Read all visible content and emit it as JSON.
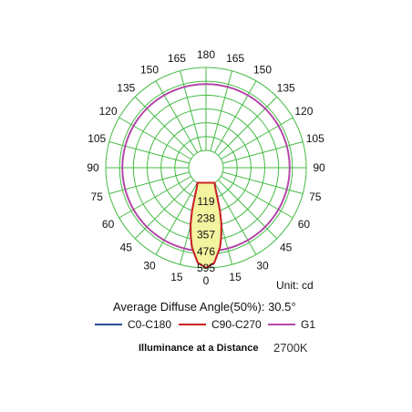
{
  "chart_data": {
    "type": "polar",
    "angle_labels": [
      "180",
      "165",
      "150",
      "135",
      "120",
      "105",
      "90",
      "75",
      "60",
      "45",
      "30",
      "15",
      "0"
    ],
    "radial_labels": [
      "119",
      "238",
      "357",
      "476",
      "595"
    ],
    "radial_max": 595,
    "unit_text": "Unit: cd",
    "avg_angle_text": "Average Diffuse Angle(50%): 30.5°",
    "series": [
      {
        "name": "C0-C180",
        "color": "#2b4c9b",
        "points": [
          [
            0,
            595
          ],
          [
            5,
            560
          ],
          [
            10,
            455
          ],
          [
            12.5,
            380
          ],
          [
            15.25,
            297
          ],
          [
            18,
            200
          ],
          [
            21,
            100
          ],
          [
            25,
            30
          ],
          [
            30,
            0
          ]
        ]
      },
      {
        "name": "C90-C270",
        "color": "#cc2222",
        "points": [
          [
            0,
            595
          ],
          [
            5,
            560
          ],
          [
            10,
            455
          ],
          [
            12.5,
            380
          ],
          [
            15.25,
            297
          ],
          [
            18,
            200
          ],
          [
            21,
            100
          ],
          [
            25,
            30
          ],
          [
            30,
            0
          ]
        ]
      },
      {
        "name": "G1",
        "color": "#b447a8",
        "radius": 476
      }
    ],
    "grid_color": "#44bb44",
    "fill_color": "#f3f3a0"
  },
  "footer": {
    "title": "Illuminance at a Distance",
    "cct": "2700K"
  }
}
